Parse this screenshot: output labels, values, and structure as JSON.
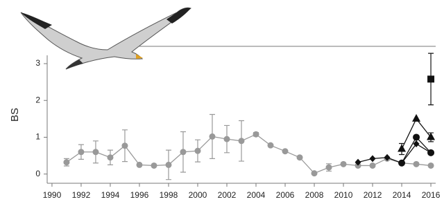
{
  "chart_data": {
    "type": "line",
    "y_label": "BS",
    "xlim": [
      1989.67,
      2016.33
    ],
    "xticks": [
      1990,
      1992,
      1994,
      1996,
      1998,
      2000,
      2002,
      2004,
      2006,
      2008,
      2010,
      2012,
      2014,
      2016
    ],
    "ylim": [
      -0.25,
      3.47
    ],
    "yticks": [
      0,
      1,
      2,
      3
    ],
    "series": [
      {
        "color": "#999999",
        "marker": "circle",
        "x": [
          1991,
          1992,
          1993,
          1994,
          1995,
          1996,
          1997,
          1998,
          1999,
          2000,
          2001,
          2002,
          2003,
          2004,
          2005,
          2006,
          2007,
          2008,
          2009,
          2010,
          2011,
          2012,
          2013,
          2014,
          2015,
          2016
        ],
        "values": [
          0.32,
          0.6,
          0.6,
          0.45,
          0.77,
          0.25,
          0.23,
          0.25,
          0.6,
          0.63,
          1.02,
          0.95,
          0.9,
          1.08,
          0.78,
          0.62,
          0.45,
          0.02,
          0.18,
          0.27,
          0.23,
          0.23,
          0.42,
          0.3,
          0.27,
          0.23
        ],
        "errors": [
          0.1,
          0.2,
          0.3,
          0.2,
          0.43,
          null,
          null,
          0.4,
          0.55,
          0.3,
          0.6,
          0.37,
          0.55,
          0.05,
          null,
          null,
          null,
          null,
          0.1,
          null,
          null,
          null,
          null,
          null,
          null,
          null
        ]
      },
      {
        "color": "#111111",
        "marker": "diamond",
        "x": [
          2011,
          2012,
          2013,
          2014,
          2015,
          2016
        ],
        "values": [
          0.32,
          0.42,
          0.45,
          0.3,
          0.82,
          0.58
        ]
      },
      {
        "color": "#111111",
        "marker": "circle",
        "x": [
          2014,
          2015,
          2016
        ],
        "values": [
          0.3,
          1.0,
          0.58
        ]
      },
      {
        "color": "#111111",
        "marker": "triangle",
        "x": [
          2014,
          2015,
          2016
        ],
        "values": [
          0.68,
          1.5,
          1.0
        ],
        "errors": [
          0.15,
          null,
          0.12
        ]
      },
      {
        "color": "#111111",
        "marker": "square",
        "x": [
          2016
        ],
        "values": [
          2.58
        ],
        "errors": [
          0.7
        ]
      }
    ]
  }
}
